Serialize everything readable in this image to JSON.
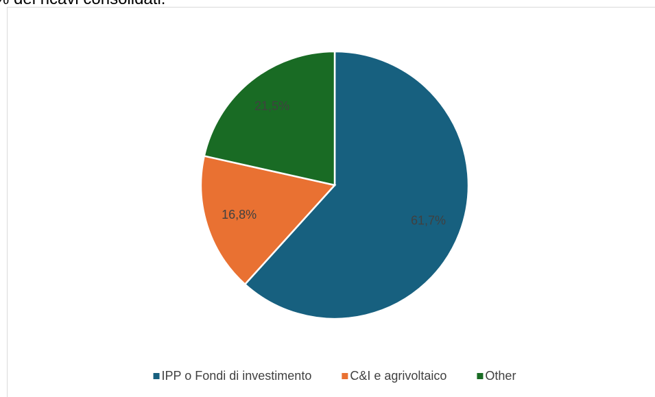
{
  "chart_data": {
    "type": "pie",
    "title": "% dei ricavi consolidati.",
    "categories": [
      "IPP o Fondi di investimento",
      "C&I e agrivoltaico",
      "Other"
    ],
    "values": [
      61.7,
      16.8,
      21.5
    ],
    "value_labels": [
      "61,7%",
      "16,8%",
      "21,5%"
    ],
    "colors": [
      "#17607f",
      "#e97132",
      "#196b24"
    ],
    "legend": "bottom"
  }
}
